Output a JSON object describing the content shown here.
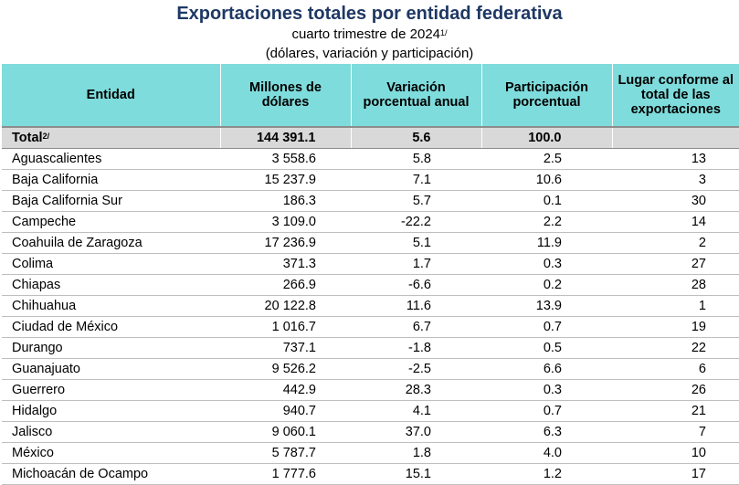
{
  "header": {
    "title": "Exportaciones totales por entidad federativa",
    "subtitle": "cuarto trimestre de 2024",
    "subtitle_note": "1/",
    "subtitle2": "(dólares, variación y participación)"
  },
  "table": {
    "columns": [
      "Entidad",
      "Millones de dólares",
      "Variación porcentual anual",
      "Participación porcentual",
      "Lugar conforme al total de las exportaciones"
    ],
    "total": {
      "label": "Total",
      "note": "2/",
      "millones": "144 391.1",
      "variacion": "5.6",
      "participacion": "100.0",
      "lugar": ""
    },
    "rows": [
      {
        "entidad": "Aguascalientes",
        "millones": "3 558.6",
        "variacion": "5.8",
        "participacion": "2.5",
        "lugar": "13"
      },
      {
        "entidad": "Baja California",
        "millones": "15 237.9",
        "variacion": "7.1",
        "participacion": "10.6",
        "lugar": "3"
      },
      {
        "entidad": "Baja California Sur",
        "millones": "186.3",
        "variacion": "5.7",
        "participacion": "0.1",
        "lugar": "30"
      },
      {
        "entidad": "Campeche",
        "millones": "3 109.0",
        "variacion": "-22.2",
        "participacion": "2.2",
        "lugar": "14"
      },
      {
        "entidad": "Coahuila de Zaragoza",
        "millones": "17 236.9",
        "variacion": "5.1",
        "participacion": "11.9",
        "lugar": "2"
      },
      {
        "entidad": "Colima",
        "millones": "371.3",
        "variacion": "1.7",
        "participacion": "0.3",
        "lugar": "27"
      },
      {
        "entidad": "Chiapas",
        "millones": "266.9",
        "variacion": "-6.6",
        "participacion": "0.2",
        "lugar": "28"
      },
      {
        "entidad": "Chihuahua",
        "millones": "20 122.8",
        "variacion": "11.6",
        "participacion": "13.9",
        "lugar": "1"
      },
      {
        "entidad": "Ciudad de México",
        "millones": "1 016.7",
        "variacion": "6.7",
        "participacion": "0.7",
        "lugar": "19"
      },
      {
        "entidad": "Durango",
        "millones": "737.1",
        "variacion": "-1.8",
        "participacion": "0.5",
        "lugar": "22"
      },
      {
        "entidad": "Guanajuato",
        "millones": "9 526.2",
        "variacion": "-2.5",
        "participacion": "6.6",
        "lugar": "6"
      },
      {
        "entidad": "Guerrero",
        "millones": "442.9",
        "variacion": "28.3",
        "participacion": "0.3",
        "lugar": "26"
      },
      {
        "entidad": "Hidalgo",
        "millones": "940.7",
        "variacion": "4.1",
        "participacion": "0.7",
        "lugar": "21"
      },
      {
        "entidad": "Jalisco",
        "millones": "9 060.1",
        "variacion": "37.0",
        "participacion": "6.3",
        "lugar": "7"
      },
      {
        "entidad": "México",
        "millones": "5 787.7",
        "variacion": "1.8",
        "participacion": "4.0",
        "lugar": "10"
      },
      {
        "entidad": "Michoacán de Ocampo",
        "millones": "1 777.6",
        "variacion": "15.1",
        "participacion": "1.2",
        "lugar": "17"
      }
    ]
  },
  "colors": {
    "title": "#1f3864",
    "header_bg": "#7fdcdc",
    "total_bg": "#d9d9d9"
  }
}
